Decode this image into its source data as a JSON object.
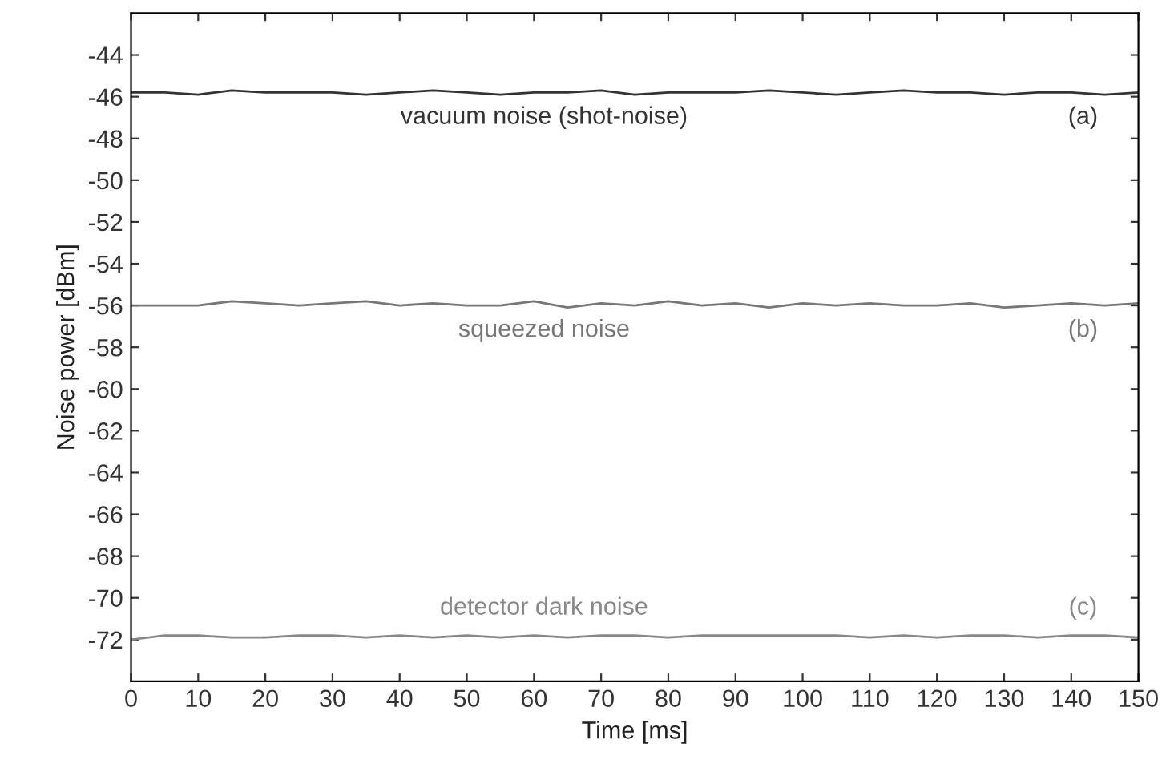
{
  "chart_data": {
    "type": "line",
    "xlabel": "Time [ms]",
    "ylabel": "Noise power [dBm]",
    "x": [
      0,
      5,
      10,
      15,
      20,
      25,
      30,
      35,
      40,
      45,
      50,
      55,
      60,
      65,
      70,
      75,
      80,
      85,
      90,
      95,
      100,
      105,
      110,
      115,
      120,
      125,
      130,
      135,
      140,
      145,
      150
    ],
    "series": [
      {
        "color": "#333333",
        "values": [
          -45.8,
          -45.8,
          -45.9,
          -45.7,
          -45.8,
          -45.8,
          -45.8,
          -45.9,
          -45.8,
          -45.7,
          -45.8,
          -45.9,
          -45.8,
          -45.8,
          -45.7,
          -45.9,
          -45.8,
          -45.8,
          -45.8,
          -45.7,
          -45.8,
          -45.9,
          -45.8,
          -45.7,
          -45.8,
          -45.8,
          -45.9,
          -45.8,
          -45.8,
          -45.9,
          -45.8
        ]
      },
      {
        "color": "#777777",
        "values": [
          -56.0,
          -56.0,
          -56.0,
          -55.8,
          -55.9,
          -56.0,
          -55.9,
          -55.8,
          -56.0,
          -55.9,
          -56.0,
          -56.0,
          -55.8,
          -56.1,
          -55.9,
          -56.0,
          -55.8,
          -56.0,
          -55.9,
          -56.1,
          -55.9,
          -56.0,
          -55.9,
          -56.0,
          -56.0,
          -55.9,
          -56.1,
          -56.0,
          -55.9,
          -56.0,
          -55.9
        ]
      },
      {
        "color": "#888888",
        "values": [
          -72.0,
          -71.8,
          -71.8,
          -71.9,
          -71.9,
          -71.8,
          -71.8,
          -71.9,
          -71.8,
          -71.9,
          -71.8,
          -71.9,
          -71.8,
          -71.9,
          -71.8,
          -71.8,
          -71.9,
          -71.8,
          -71.8,
          -71.8,
          -71.8,
          -71.8,
          -71.9,
          -71.8,
          -71.9,
          -71.8,
          -71.8,
          -71.9,
          -71.8,
          -71.8,
          -71.9
        ]
      }
    ],
    "xlim": [
      0,
      150
    ],
    "xticks": [
      0,
      10,
      20,
      30,
      40,
      50,
      60,
      70,
      80,
      90,
      100,
      110,
      120,
      130,
      140,
      150
    ],
    "ylim": [
      -74,
      -42
    ],
    "yticks": [
      -44,
      -46,
      -48,
      -50,
      -52,
      -54,
      -56,
      -58,
      -60,
      -62,
      -64,
      -66,
      -68,
      -70,
      -72
    ],
    "grid": false,
    "marker": "none",
    "line_style": "solid",
    "annotations": [
      "vacuum noise (shot-noise)",
      "(a)",
      "squeezed noise",
      "(b)",
      "detector dark noise",
      "(c)"
    ]
  }
}
